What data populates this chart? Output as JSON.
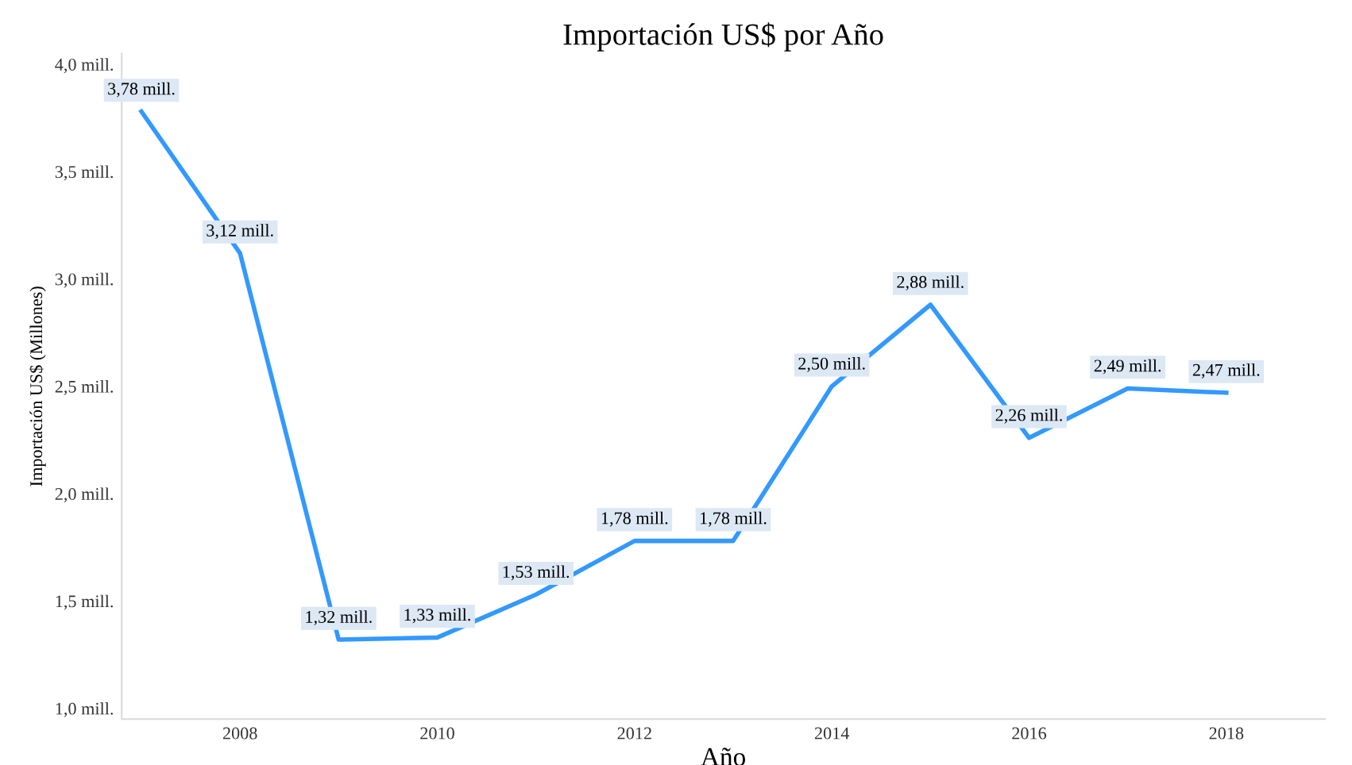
{
  "chart_data": {
    "type": "line",
    "title": "Importación US$ por Año",
    "xlabel": "Año",
    "ylabel": "Importación US$ (Millones)",
    "x": [
      2007,
      2008,
      2009,
      2010,
      2011,
      2012,
      2013,
      2014,
      2015,
      2016,
      2017,
      2018
    ],
    "series": [
      {
        "color": "#3399ff",
        "values": [
          3.78,
          3.12,
          1.32,
          1.33,
          1.53,
          1.78,
          1.78,
          2.5,
          2.88,
          2.26,
          2.49,
          2.47
        ],
        "value_labels": [
          "3,78 mill.",
          "3,12 mill.",
          "1,32 mill.",
          "1,33 mill.",
          "1,53 mill.",
          "1,78 mill.",
          "1,78 mill.",
          "2,50 mill.",
          "2,88 mill.",
          "2,26 mill.",
          "2,49 mill.",
          "2,47 mill."
        ]
      }
    ],
    "xlim": [
      2006.8,
      2019.0
    ],
    "ylim": [
      0.95,
      4.05
    ],
    "xticks": [
      2008,
      2010,
      2012,
      2014,
      2016,
      2018
    ],
    "yticks": [
      {
        "value": 1.0,
        "label": "1,0 mill."
      },
      {
        "value": 1.5,
        "label": "1,5 mill."
      },
      {
        "value": 2.0,
        "label": "2,0 mill."
      },
      {
        "value": 2.5,
        "label": "2,5 mill."
      },
      {
        "value": 3.0,
        "label": "3,0 mill."
      },
      {
        "value": 3.5,
        "label": "3,5 mill."
      },
      {
        "value": 4.0,
        "label": "4,0 mill."
      }
    ],
    "grid": false,
    "legend": false,
    "marker": "none",
    "line_style": "solid"
  }
}
